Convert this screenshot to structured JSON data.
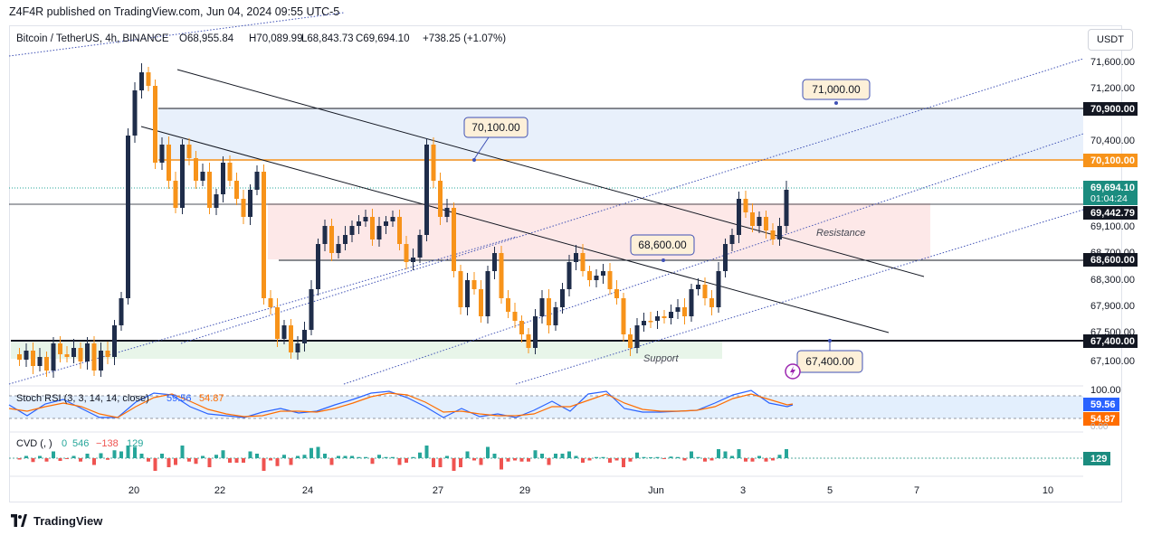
{
  "header": {
    "publisher": "Z4F4R published on TradingView.com, Jun 04, 2024 09:55 UTC-5"
  },
  "legend": {
    "symbol": "Bitcoin / TetherUS, 4h, BINANCE",
    "open": "O68,955.84",
    "high": "H70,089.99",
    "low": "L68,843.73",
    "close": "C69,694.10",
    "change": "+738.25 (+1.07%)"
  },
  "currency_button": "USDT",
  "price_axis": {
    "ticks": [
      "71,600.00",
      "71,200.00",
      "70,400.00",
      "69,100.00",
      "68,700.00",
      "68,300.00",
      "67,900.00",
      "67,500.00",
      "67,100.00"
    ],
    "badges": {
      "level_70900": "70,900.00",
      "level_70100": "70,100.00",
      "last_price": "69,694.10",
      "countdown": "01:04:24",
      "level_69442": "69,442.79",
      "level_68600": "68,600.00",
      "level_67400": "67,400.00"
    }
  },
  "annotations": {
    "callout_71000": "71,000.00",
    "callout_70100": "70,100.00",
    "callout_68600": "68,600.00",
    "callout_67400": "67,400.00",
    "resistance": "Resistance",
    "support": "Support"
  },
  "stoch": {
    "label": "Stoch RSI (3, 3, 14, 14, close)",
    "k": "59.56",
    "d": "54.87",
    "axis_top": "100.00",
    "badge_k": "59.56",
    "badge_d": "54.87",
    "axis_bottom": "0.00"
  },
  "cvd": {
    "label": "CVD (, )",
    "v1": "0",
    "v2": "546",
    "v3": "−138",
    "v4": "129",
    "badge": "129"
  },
  "time_axis": {
    "ticks": [
      "20",
      "22",
      "24",
      "27",
      "29",
      "Jun",
      "3",
      "5",
      "7",
      "10"
    ]
  },
  "footer": {
    "brand": "TradingView"
  },
  "colors": {
    "bull": "#26a69a",
    "bear": "#ef5350",
    "candle_up": "#1f2d4a",
    "candle_down": "#f7931a",
    "accent_orange": "#f7931a",
    "resistance_zone": "#fde8e8",
    "support_zone": "#e8f5e9",
    "top_zone": "#e8f0fb",
    "stoch_k": "#2962ff",
    "stoch_d": "#ff6d00"
  }
}
